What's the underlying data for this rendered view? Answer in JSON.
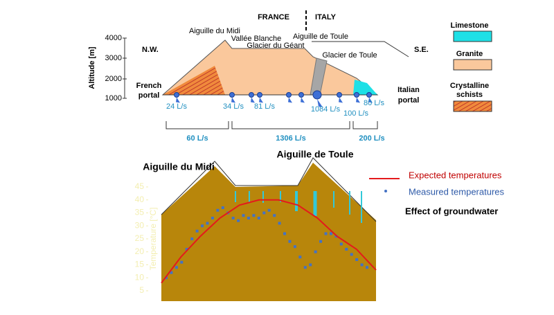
{
  "profile": {
    "countries": [
      "FRANCE",
      "ITALY"
    ],
    "axis_label": "Altitude [m]",
    "altitude_ticks": [
      4000,
      3000,
      2000,
      1000
    ],
    "directions": [
      "N.W.",
      "S.E."
    ],
    "peaks": [
      "Aiguille du Midi",
      "Vallée Blanche",
      "Glacier du Géant",
      "Aiguille de Toule",
      "Glacier de Toule"
    ],
    "portals": [
      [
        "French",
        "portal"
      ],
      [
        "Italian",
        "portal"
      ]
    ],
    "springs": [
      "24 L/s",
      "34 L/s",
      "81 L/s",
      "1084 L/s",
      "100 L/s",
      "80 L/s"
    ],
    "totals": [
      "60 L/s",
      "1306 L/s",
      "200 L/s"
    ],
    "legend": [
      "Limestone",
      "Granite",
      [
        "Crystalline",
        "schists"
      ]
    ]
  },
  "temperature_chart": {
    "axis_label": "Temperature [°C]",
    "yticks": [
      5,
      10,
      15,
      20,
      25,
      30,
      35,
      40,
      45
    ],
    "ylim": [
      5,
      45
    ],
    "peaks": [
      "Aiguille du Midi",
      "Aiguille de Toule"
    ],
    "expected": {
      "name": "Expected temperatures",
      "color": "#e41a1c",
      "values": [
        8,
        18,
        26,
        33,
        38,
        40,
        40,
        38,
        33,
        26,
        21,
        13
      ]
    },
    "measured": {
      "name": "Measured temperatures",
      "color": "#4472c4",
      "values": [
        10,
        12,
        14,
        16,
        21,
        25,
        28,
        30,
        31,
        33,
        36,
        37,
        35,
        33,
        32,
        34,
        33,
        34,
        33,
        35,
        36,
        34,
        31,
        27,
        24,
        22,
        18,
        14,
        15,
        20,
        24,
        27,
        27,
        26,
        23,
        21,
        19,
        17,
        15,
        14
      ]
    },
    "effect": "Effect of groundwater"
  }
}
